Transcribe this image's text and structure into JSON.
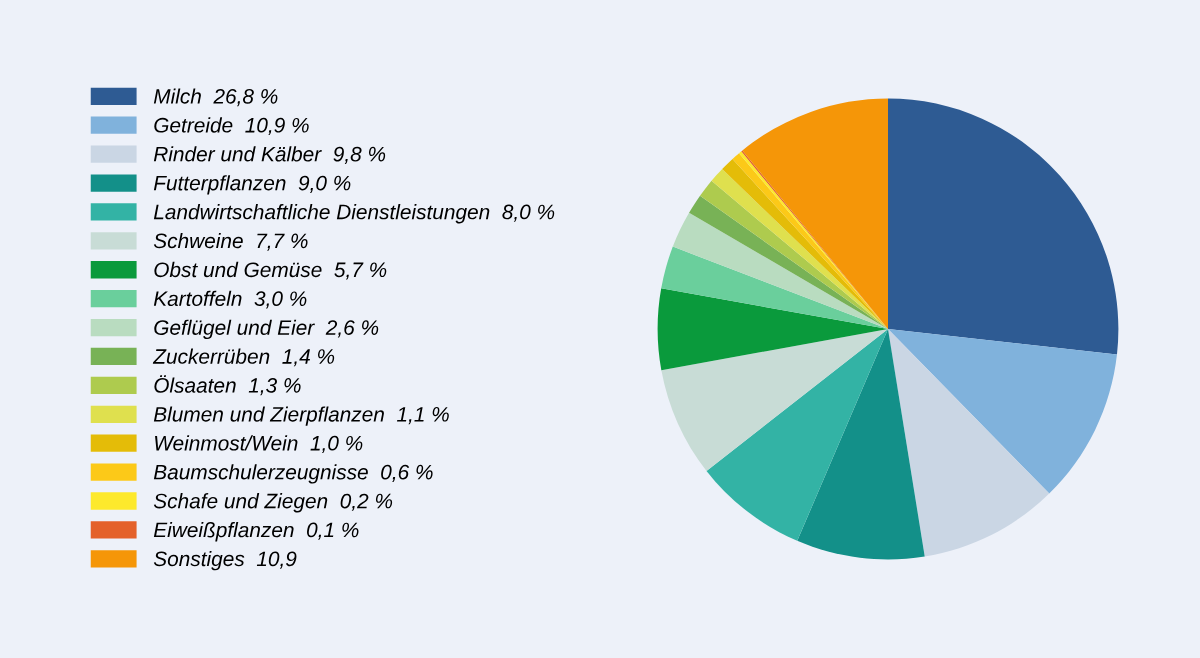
{
  "chart_data": {
    "type": "pie",
    "legend": "left",
    "categories": [
      "Milch  26,8 %",
      "Getreide  10,9 %",
      "Rinder und Kälber  9,8 %",
      "Futterpflanzen  9,0 %",
      "Landwirtschaftliche Dienstleistungen  8,0 %",
      "Schweine  7,7 %",
      "Obst und Gemüse  5,7 %",
      "Kartoffeln  3,0 %",
      "Geflügel und Eier  2,6 %",
      "Zuckerrüben  1,4 %",
      "Ölsaaten  1,3 %",
      "Blumen und Zierpflanzen  1,1 %",
      "Weinmost/Wein  1,0 %",
      "Baumschulerzeugnisse  0,6 %",
      "Schafe und Ziegen  0,2 %",
      "Eiweißpflanzen  0,1 %",
      "Sonstiges  10,9"
    ],
    "values": [
      26.8,
      10.9,
      9.8,
      9.0,
      8.0,
      7.7,
      5.7,
      3.0,
      2.6,
      1.4,
      1.3,
      1.1,
      1.0,
      0.6,
      0.2,
      0.1,
      10.9
    ],
    "colors": [
      "#2e5b93",
      "#80b2dc",
      "#cad6e4",
      "#139089",
      "#33b3a5",
      "#c8dcd6",
      "#0a9a3c",
      "#6acf9c",
      "#b9dcc0",
      "#78b256",
      "#aecb4e",
      "#dfe04e",
      "#e4bc08",
      "#fcc918",
      "#fde92c",
      "#e4612a",
      "#f59608"
    ]
  }
}
